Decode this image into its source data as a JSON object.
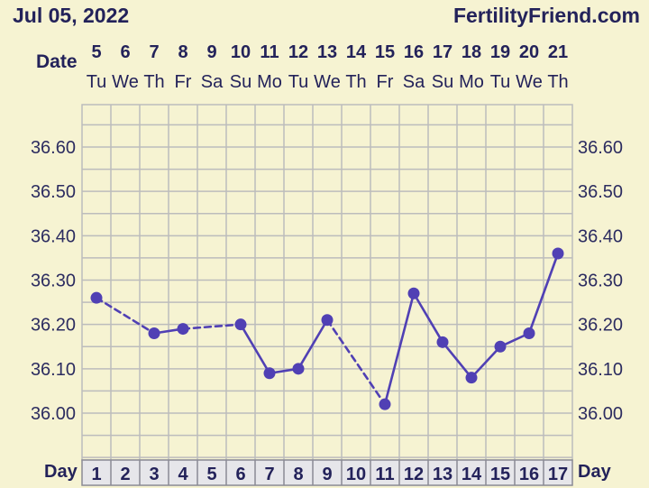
{
  "header": {
    "date": "Jul 05, 2022",
    "site": "FertilityFriend.com"
  },
  "labels": {
    "date_row": "Date",
    "day_row_left": "Day",
    "day_row_right": "Day"
  },
  "colors": {
    "background": "#f6f3d2",
    "grid": "#bcbcbc",
    "line": "#5040b4",
    "text": "#23225a",
    "day_row_bg": "#e6e6ea"
  },
  "chart_data": {
    "type": "line",
    "dates": [
      "5",
      "6",
      "7",
      "8",
      "9",
      "10",
      "11",
      "12",
      "13",
      "14",
      "15",
      "16",
      "17",
      "18",
      "19",
      "20",
      "21"
    ],
    "weekdays": [
      "Tu",
      "We",
      "Th",
      "Fr",
      "Sa",
      "Su",
      "Mo",
      "Tu",
      "We",
      "Th",
      "Fr",
      "Sa",
      "Su",
      "Mo",
      "Tu",
      "We",
      "Th"
    ],
    "days": [
      "1",
      "2",
      "3",
      "4",
      "5",
      "6",
      "7",
      "8",
      "9",
      "10",
      "11",
      "12",
      "13",
      "14",
      "15",
      "16",
      "17"
    ],
    "y_ticks": [
      "36.60",
      "36.50",
      "36.40",
      "36.30",
      "36.20",
      "36.10",
      "36.00"
    ],
    "ylim": [
      35.92,
      36.7
    ],
    "grid": true,
    "points": [
      {
        "day": 1,
        "temp": 36.26
      },
      {
        "day": 3,
        "temp": 36.18
      },
      {
        "day": 4,
        "temp": 36.19
      },
      {
        "day": 6,
        "temp": 36.2
      },
      {
        "day": 7,
        "temp": 36.09
      },
      {
        "day": 8,
        "temp": 36.1
      },
      {
        "day": 9,
        "temp": 36.21
      },
      {
        "day": 11,
        "temp": 36.02
      },
      {
        "day": 12,
        "temp": 36.27
      },
      {
        "day": 13,
        "temp": 36.16
      },
      {
        "day": 14,
        "temp": 36.08
      },
      {
        "day": 15,
        "temp": 36.15
      },
      {
        "day": 16,
        "temp": 36.18
      },
      {
        "day": 17,
        "temp": 36.36
      }
    ]
  }
}
